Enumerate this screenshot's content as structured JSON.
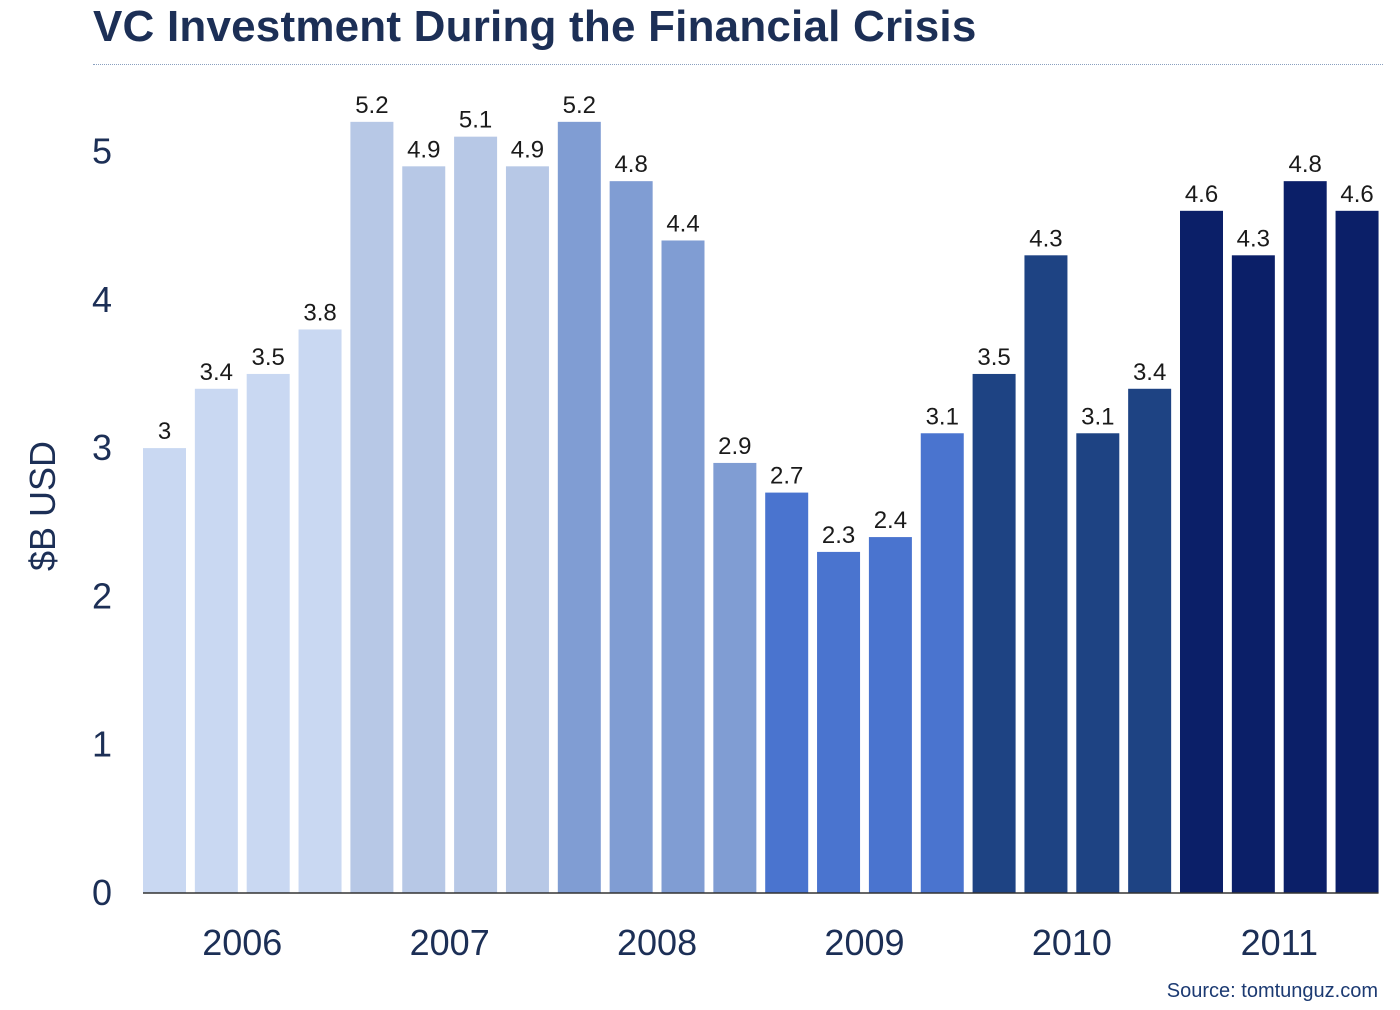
{
  "header": {
    "title": "VC Investment During the Financial Crisis"
  },
  "footer": {
    "source": "Source: tomtunguz.com"
  },
  "chart_data": {
    "type": "bar",
    "title": "VC Investment During the Financial Crisis",
    "ylabel": "$B USD",
    "xlabel": "",
    "ylim": [
      0,
      5.2
    ],
    "yticks": [
      0,
      1,
      2,
      3,
      4,
      5
    ],
    "grid": false,
    "year_labels": [
      "2006",
      "2007",
      "2008",
      "2009",
      "2010",
      "2011"
    ],
    "groups": [
      {
        "year": "2006",
        "color": "#c9d8f2",
        "values": [
          3,
          3.4,
          3.5,
          3.8
        ]
      },
      {
        "year": "2007",
        "color": "#b7c8e6",
        "values": [
          5.2,
          4.9,
          5.1,
          4.9
        ]
      },
      {
        "year": "2008",
        "color": "#809dd3",
        "values": [
          5.2,
          4.8,
          4.4,
          2.9
        ]
      },
      {
        "year": "2009",
        "color": "#4a74cf",
        "values": [
          2.7,
          2.3,
          2.4,
          3.1
        ]
      },
      {
        "year": "2010",
        "color": "#1e4383",
        "values": [
          3.5,
          4.3,
          3.1,
          3.4
        ]
      },
      {
        "year": "2011",
        "color": "#0b1f68",
        "values": [
          4.6,
          4.3,
          4.8,
          4.6
        ]
      }
    ],
    "value_labels": [
      "3",
      "3.4",
      "3.5",
      "3.8",
      "5.2",
      "4.9",
      "5.1",
      "4.9",
      "5.2",
      "4.8",
      "4.4",
      "2.9",
      "2.7",
      "2.3",
      "2.4",
      "3.1",
      "3.5",
      "4.3",
      "3.1",
      "3.4",
      "4.6",
      "4.3",
      "4.8",
      "4.6"
    ],
    "colors": {
      "text": "#1c2f56",
      "axis": "#333333"
    }
  }
}
